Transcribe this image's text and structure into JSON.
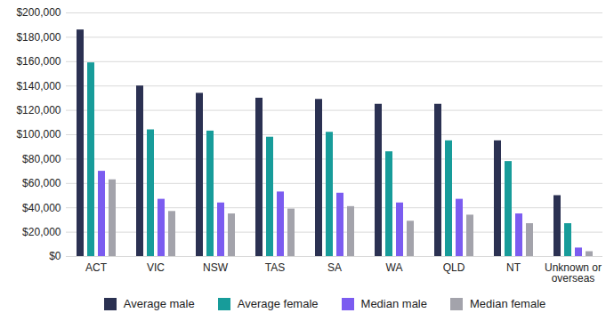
{
  "chart_data": {
    "type": "bar",
    "categories": [
      "ACT",
      "VIC",
      "NSW",
      "TAS",
      "SA",
      "WA",
      "QLD",
      "NT",
      "Unknown or overseas"
    ],
    "series": [
      {
        "name": "Average male",
        "color": "#2b3152",
        "values": [
          186000,
          140000,
          134000,
          130000,
          129000,
          125000,
          125000,
          95000,
          50000
        ]
      },
      {
        "name": "Average female",
        "color": "#179c9a",
        "values": [
          159000,
          104000,
          103000,
          98000,
          102000,
          86000,
          95000,
          78000,
          27000
        ]
      },
      {
        "name": "Median male",
        "color": "#7b5cf0",
        "values": [
          70000,
          47000,
          44000,
          53000,
          52000,
          44000,
          47000,
          35000,
          7000
        ]
      },
      {
        "name": "Median female",
        "color": "#a3a3ab",
        "values": [
          63000,
          37000,
          35000,
          39000,
          41000,
          29000,
          34000,
          27000,
          4000
        ]
      }
    ],
    "ylim": [
      0,
      200000
    ],
    "yticks": [
      {
        "value": 0,
        "label": "$0"
      },
      {
        "value": 20000,
        "label": "$20,000"
      },
      {
        "value": 40000,
        "label": "$40,000"
      },
      {
        "value": 60000,
        "label": "$60,000"
      },
      {
        "value": 80000,
        "label": "$80,000"
      },
      {
        "value": 100000,
        "label": "$100,000"
      },
      {
        "value": 120000,
        "label": "$120,000"
      },
      {
        "value": 140000,
        "label": "$140,000"
      },
      {
        "value": 160000,
        "label": "$160,000"
      },
      {
        "value": 180000,
        "label": "$180,000"
      },
      {
        "value": 200000,
        "label": "$200,000"
      }
    ],
    "grid": true,
    "legend": "bottom"
  }
}
